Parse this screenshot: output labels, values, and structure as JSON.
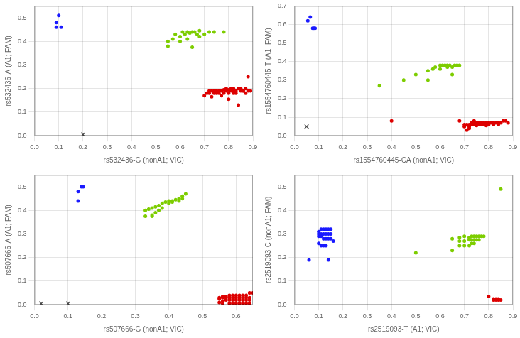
{
  "chart_data": [
    {
      "type": "scatter",
      "grid": true,
      "x_label": "rs532436-G (nonA1; VIC)",
      "y_label": "rs532436-A (A1; FAM)",
      "xlim": [
        0.0,
        0.9
      ],
      "ylim": [
        0.0,
        0.55
      ],
      "xticks": [
        {
          "value": 0.0,
          "label": "0.0"
        },
        0.1,
        0.2,
        0.3,
        0.4,
        0.5,
        0.6,
        0.7,
        0.8,
        0.9
      ],
      "yticks": [
        {
          "value": 0.0,
          "label": "0.0"
        },
        0.1,
        0.2,
        0.3,
        0.4,
        0.5
      ],
      "series": [
        {
          "color": "#1a1aff",
          "marker": "circle",
          "x": [
            0.09,
            0.09,
            0.1,
            0.11
          ],
          "values": [
            0.46,
            0.48,
            0.51,
            0.46
          ]
        },
        {
          "color": "#7dcd00",
          "marker": "circle",
          "x": [
            0.55,
            0.57,
            0.58,
            0.6,
            0.61,
            0.62,
            0.63,
            0.64,
            0.65,
            0.66,
            0.67,
            0.68,
            0.7,
            0.72,
            0.74,
            0.55,
            0.6,
            0.63,
            0.65,
            0.68,
            0.78
          ],
          "values": [
            0.4,
            0.41,
            0.43,
            0.42,
            0.44,
            0.43,
            0.44,
            0.435,
            0.44,
            0.44,
            0.43,
            0.445,
            0.43,
            0.44,
            0.44,
            0.38,
            0.4,
            0.41,
            0.375,
            0.42,
            0.44
          ]
        },
        {
          "color": "#dd0000",
          "marker": "circle",
          "x": [
            0.7,
            0.72,
            0.73,
            0.74,
            0.75,
            0.76,
            0.77,
            0.78,
            0.79,
            0.8,
            0.81,
            0.82,
            0.83,
            0.84,
            0.85,
            0.86,
            0.87,
            0.88,
            0.89,
            0.71,
            0.73,
            0.74,
            0.75,
            0.76,
            0.77,
            0.78,
            0.79,
            0.8,
            0.81,
            0.82,
            0.83,
            0.85,
            0.86,
            0.87,
            0.88,
            0.8,
            0.84,
            0.82,
            0.72
          ],
          "values": [
            0.17,
            0.18,
            0.19,
            0.19,
            0.19,
            0.19,
            0.19,
            0.195,
            0.2,
            0.195,
            0.2,
            0.2,
            0.19,
            0.2,
            0.2,
            0.19,
            0.2,
            0.25,
            0.19,
            0.18,
            0.165,
            0.18,
            0.18,
            0.18,
            0.17,
            0.18,
            0.19,
            0.18,
            0.19,
            0.18,
            0.18,
            0.19,
            0.19,
            0.18,
            0.19,
            0.155,
            0.13,
            0.19,
            0.19
          ]
        },
        {
          "color": "#444444",
          "marker": "x",
          "x": [
            0.2
          ],
          "values": [
            0.005
          ]
        }
      ]
    },
    {
      "type": "scatter",
      "grid": true,
      "x_label": "rs1554760445-CA (nonA1; VIC)",
      "y_label": "rs1554760445-T (A1; FAM)",
      "xlim": [
        0.0,
        0.9
      ],
      "ylim": [
        0.0,
        0.7
      ],
      "xticks": [
        {
          "value": 0.0,
          "label": "0.0"
        },
        0.1,
        0.2,
        0.3,
        0.4,
        0.5,
        0.6,
        0.7,
        0.8,
        0.9
      ],
      "yticks": [
        {
          "value": 0.0,
          "label": "0.0"
        },
        0.1,
        0.2,
        0.3,
        0.4,
        0.5,
        0.6,
        0.7
      ],
      "series": [
        {
          "color": "#1a1aff",
          "marker": "circle",
          "x": [
            0.055,
            0.065,
            0.075,
            0.08,
            0.085
          ],
          "values": [
            0.62,
            0.64,
            0.58,
            0.58,
            0.58
          ]
        },
        {
          "color": "#7dcd00",
          "marker": "circle",
          "x": [
            0.35,
            0.45,
            0.5,
            0.55,
            0.57,
            0.58,
            0.6,
            0.61,
            0.62,
            0.63,
            0.64,
            0.65,
            0.66,
            0.67,
            0.68,
            0.55,
            0.6,
            0.63,
            0.65
          ],
          "values": [
            0.27,
            0.3,
            0.33,
            0.35,
            0.36,
            0.37,
            0.38,
            0.38,
            0.38,
            0.38,
            0.38,
            0.37,
            0.38,
            0.38,
            0.38,
            0.3,
            0.36,
            0.37,
            0.33
          ]
        },
        {
          "color": "#dd0000",
          "marker": "circle",
          "x": [
            0.4,
            0.68,
            0.7,
            0.71,
            0.72,
            0.73,
            0.74,
            0.75,
            0.76,
            0.77,
            0.78,
            0.79,
            0.8,
            0.81,
            0.82,
            0.83,
            0.84,
            0.85,
            0.86,
            0.87,
            0.88,
            0.7,
            0.72,
            0.73,
            0.74,
            0.75,
            0.76,
            0.77,
            0.78,
            0.79,
            0.8,
            0.82,
            0.84,
            0.72,
            0.74,
            0.75,
            0.76,
            0.77,
            0.78,
            0.71
          ],
          "values": [
            0.08,
            0.08,
            0.06,
            0.06,
            0.06,
            0.07,
            0.07,
            0.07,
            0.07,
            0.07,
            0.07,
            0.07,
            0.07,
            0.07,
            0.07,
            0.07,
            0.07,
            0.07,
            0.08,
            0.08,
            0.07,
            0.05,
            0.05,
            0.06,
            0.06,
            0.055,
            0.06,
            0.06,
            0.06,
            0.055,
            0.06,
            0.06,
            0.06,
            0.04,
            0.08,
            0.07,
            0.07,
            0.07,
            0.06,
            0.03
          ]
        },
        {
          "color": "#444444",
          "marker": "x",
          "x": [
            0.05
          ],
          "values": [
            0.05
          ]
        }
      ]
    },
    {
      "type": "scatter",
      "grid": true,
      "x_label": "rs507666-G (nonA1; VIC)",
      "y_label": "rs507666-A (A1; FAM)",
      "xlim": [
        0.0,
        0.65
      ],
      "ylim": [
        0.0,
        0.55
      ],
      "xticks": [
        {
          "value": 0.0,
          "label": "0.0"
        },
        0.1,
        0.2,
        0.3,
        0.4,
        0.5,
        0.6
      ],
      "yticks": [
        {
          "value": 0.0,
          "label": "0.0"
        },
        0.1,
        0.2,
        0.3,
        0.4,
        0.5
      ],
      "series": [
        {
          "color": "#1a1aff",
          "marker": "circle",
          "x": [
            0.13,
            0.13,
            0.14,
            0.145
          ],
          "values": [
            0.44,
            0.48,
            0.5,
            0.5
          ]
        },
        {
          "color": "#7dcd00",
          "marker": "circle",
          "x": [
            0.33,
            0.34,
            0.35,
            0.36,
            0.37,
            0.38,
            0.39,
            0.4,
            0.41,
            0.42,
            0.43,
            0.44,
            0.45,
            0.33,
            0.35,
            0.36,
            0.37,
            0.38,
            0.4,
            0.41,
            0.43,
            0.44,
            0.35
          ],
          "values": [
            0.4,
            0.405,
            0.41,
            0.415,
            0.42,
            0.43,
            0.435,
            0.44,
            0.44,
            0.445,
            0.45,
            0.46,
            0.47,
            0.375,
            0.38,
            0.39,
            0.4,
            0.41,
            0.43,
            0.435,
            0.44,
            0.45,
            0.375
          ]
        },
        {
          "color": "#dd0000",
          "marker": "circle",
          "x": [
            0.55,
            0.56,
            0.57,
            0.58,
            0.59,
            0.6,
            0.61,
            0.62,
            0.63,
            0.64,
            0.55,
            0.56,
            0.57,
            0.58,
            0.59,
            0.6,
            0.61,
            0.62,
            0.63,
            0.64,
            0.55,
            0.56,
            0.57,
            0.58,
            0.59,
            0.6,
            0.61,
            0.62,
            0.63,
            0.64,
            0.58,
            0.59,
            0.6,
            0.61,
            0.62,
            0.63,
            0.64,
            0.65,
            0.56
          ],
          "values": [
            0.01,
            0.015,
            0.02,
            0.02,
            0.02,
            0.02,
            0.02,
            0.02,
            0.02,
            0.02,
            0.025,
            0.03,
            0.03,
            0.03,
            0.03,
            0.03,
            0.03,
            0.03,
            0.03,
            0.03,
            0.03,
            0.035,
            0.035,
            0.04,
            0.04,
            0.04,
            0.04,
            0.04,
            0.04,
            0.05,
            0.005,
            0.005,
            0.005,
            0.005,
            0.005,
            0.005,
            0.005,
            0.05,
            0.005
          ]
        },
        {
          "color": "#444444",
          "marker": "x",
          "x": [
            0.02,
            0.1
          ],
          "values": [
            0.005,
            0.005
          ]
        }
      ]
    },
    {
      "type": "scatter",
      "grid": true,
      "x_label": "rs2519093-T (A1; VIC)",
      "y_label": "rs2519093-C (nonA1; FAM)",
      "xlim": [
        0.0,
        0.9
      ],
      "ylim": [
        0.0,
        0.55
      ],
      "xticks": [
        {
          "value": 0.0,
          "label": "0.0"
        },
        0.1,
        0.2,
        0.3,
        0.4,
        0.5,
        0.6,
        0.7,
        0.8,
        0.9
      ],
      "yticks": [
        {
          "value": 0.0,
          "label": "0.0"
        },
        0.1,
        0.2,
        0.3,
        0.4,
        0.5
      ],
      "series": [
        {
          "color": "#1a1aff",
          "marker": "circle",
          "x": [
            0.06,
            0.1,
            0.11,
            0.12,
            0.13,
            0.14,
            0.15,
            0.1,
            0.11,
            0.12,
            0.13,
            0.14,
            0.15,
            0.1,
            0.11,
            0.12,
            0.13,
            0.14,
            0.15,
            0.16,
            0.1,
            0.11,
            0.12,
            0.13,
            0.14
          ],
          "values": [
            0.19,
            0.31,
            0.32,
            0.32,
            0.32,
            0.32,
            0.32,
            0.3,
            0.3,
            0.3,
            0.3,
            0.3,
            0.3,
            0.29,
            0.29,
            0.28,
            0.28,
            0.28,
            0.28,
            0.27,
            0.26,
            0.25,
            0.25,
            0.25,
            0.19
          ]
        },
        {
          "color": "#7dcd00",
          "marker": "circle",
          "x": [
            0.5,
            0.65,
            0.68,
            0.7,
            0.72,
            0.73,
            0.74,
            0.75,
            0.76,
            0.77,
            0.78,
            0.68,
            0.7,
            0.72,
            0.73,
            0.74,
            0.75,
            0.76,
            0.68,
            0.7,
            0.72,
            0.73,
            0.74,
            0.65,
            0.85
          ],
          "values": [
            0.22,
            0.28,
            0.285,
            0.29,
            0.285,
            0.29,
            0.29,
            0.29,
            0.29,
            0.29,
            0.29,
            0.27,
            0.27,
            0.275,
            0.275,
            0.275,
            0.275,
            0.275,
            0.25,
            0.25,
            0.25,
            0.26,
            0.26,
            0.23,
            0.49
          ]
        },
        {
          "color": "#dd0000",
          "marker": "circle",
          "x": [
            0.8,
            0.82,
            0.83,
            0.84,
            0.85,
            0.83,
            0.84,
            0.82
          ],
          "values": [
            0.035,
            0.025,
            0.025,
            0.025,
            0.02,
            0.02,
            0.02,
            0.02
          ]
        }
      ]
    }
  ]
}
